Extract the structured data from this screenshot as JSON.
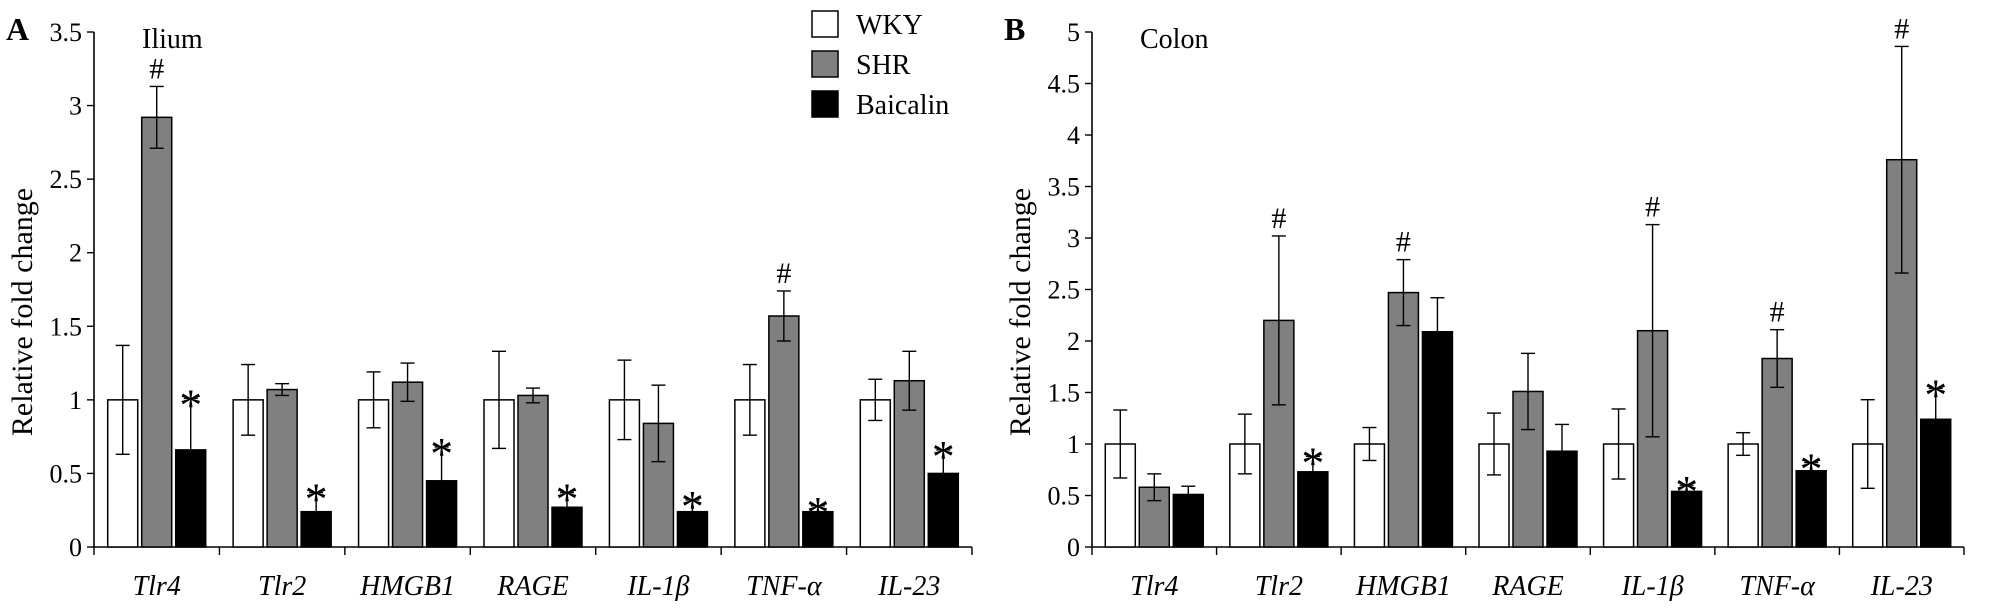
{
  "legend": {
    "entries": [
      {
        "label": "WKY",
        "color": "#ffffff"
      },
      {
        "label": "SHR",
        "color": "#808080"
      },
      {
        "label": "Baicalin",
        "color": "#000000"
      }
    ]
  },
  "chart_data": [
    {
      "type": "bar",
      "panel_letter": "A",
      "title": "Ilium",
      "ylabel": "Relative fold change",
      "xlabel": "",
      "ylim": [
        0,
        3.5
      ],
      "yticks": [
        "0",
        "0.5",
        "1",
        "1.5",
        "2",
        "2.5",
        "3",
        "3.5"
      ],
      "categories": [
        "Tlr4",
        "Tlr2",
        "HMGB1",
        "RAGE",
        "IL-1β",
        "TNF-α",
        "IL-23"
      ],
      "series": [
        {
          "name": "WKY",
          "color": "#ffffff",
          "values": [
            1.0,
            1.0,
            1.0,
            1.0,
            1.0,
            1.0,
            1.0
          ],
          "errors": [
            0.37,
            0.24,
            0.19,
            0.33,
            0.27,
            0.24,
            0.14
          ],
          "marks": [
            "",
            "",
            "",
            "",
            "",
            "",
            ""
          ]
        },
        {
          "name": "SHR",
          "color": "#808080",
          "values": [
            2.92,
            1.07,
            1.12,
            1.03,
            0.84,
            1.57,
            1.13
          ],
          "errors": [
            0.21,
            0.04,
            0.13,
            0.05,
            0.26,
            0.17,
            0.2
          ],
          "marks": [
            "#",
            "",
            "",
            "",
            "",
            "#",
            ""
          ]
        },
        {
          "name": "Baicalin",
          "color": "#000000",
          "values": [
            0.66,
            0.24,
            0.45,
            0.27,
            0.24,
            0.24,
            0.5
          ],
          "errors": [
            0.35,
            0.13,
            0.23,
            0.1,
            0.08,
            0.04,
            0.16
          ],
          "marks": [
            "*",
            "*",
            "*",
            "*",
            "*",
            "*",
            "*"
          ]
        }
      ]
    },
    {
      "type": "bar",
      "panel_letter": "B",
      "title": "Colon",
      "ylabel": "Relative fold change",
      "xlabel": "",
      "ylim": [
        0,
        5
      ],
      "yticks": [
        "0",
        "0.5",
        "1",
        "1.5",
        "2",
        "2.5",
        "3",
        "3.5",
        "4",
        "4.5",
        "5"
      ],
      "categories": [
        "Tlr4",
        "Tlr2",
        "HMGB1",
        "RAGE",
        "IL-1β",
        "TNF-α",
        "IL-23"
      ],
      "series": [
        {
          "name": "WKY",
          "color": "#ffffff",
          "values": [
            1.0,
            1.0,
            1.0,
            1.0,
            1.0,
            1.0,
            1.0
          ],
          "errors": [
            0.33,
            0.29,
            0.16,
            0.3,
            0.34,
            0.11,
            0.43
          ],
          "marks": [
            "",
            "",
            "",
            "",
            "",
            "",
            ""
          ]
        },
        {
          "name": "SHR",
          "color": "#808080",
          "values": [
            0.58,
            2.2,
            2.47,
            1.51,
            2.1,
            1.83,
            3.76
          ],
          "errors": [
            0.13,
            0.82,
            0.32,
            0.37,
            1.03,
            0.28,
            1.1
          ],
          "marks": [
            "",
            "#",
            "#",
            "",
            "#",
            "#",
            "#"
          ]
        },
        {
          "name": "Baicalin",
          "color": "#000000",
          "values": [
            0.51,
            0.73,
            2.09,
            0.93,
            0.54,
            0.74,
            1.24
          ],
          "errors": [
            0.08,
            0.15,
            0.33,
            0.26,
            0.06,
            0.08,
            0.3
          ],
          "marks": [
            "",
            "*",
            "",
            "",
            "*",
            "*",
            "*"
          ]
        }
      ]
    }
  ]
}
